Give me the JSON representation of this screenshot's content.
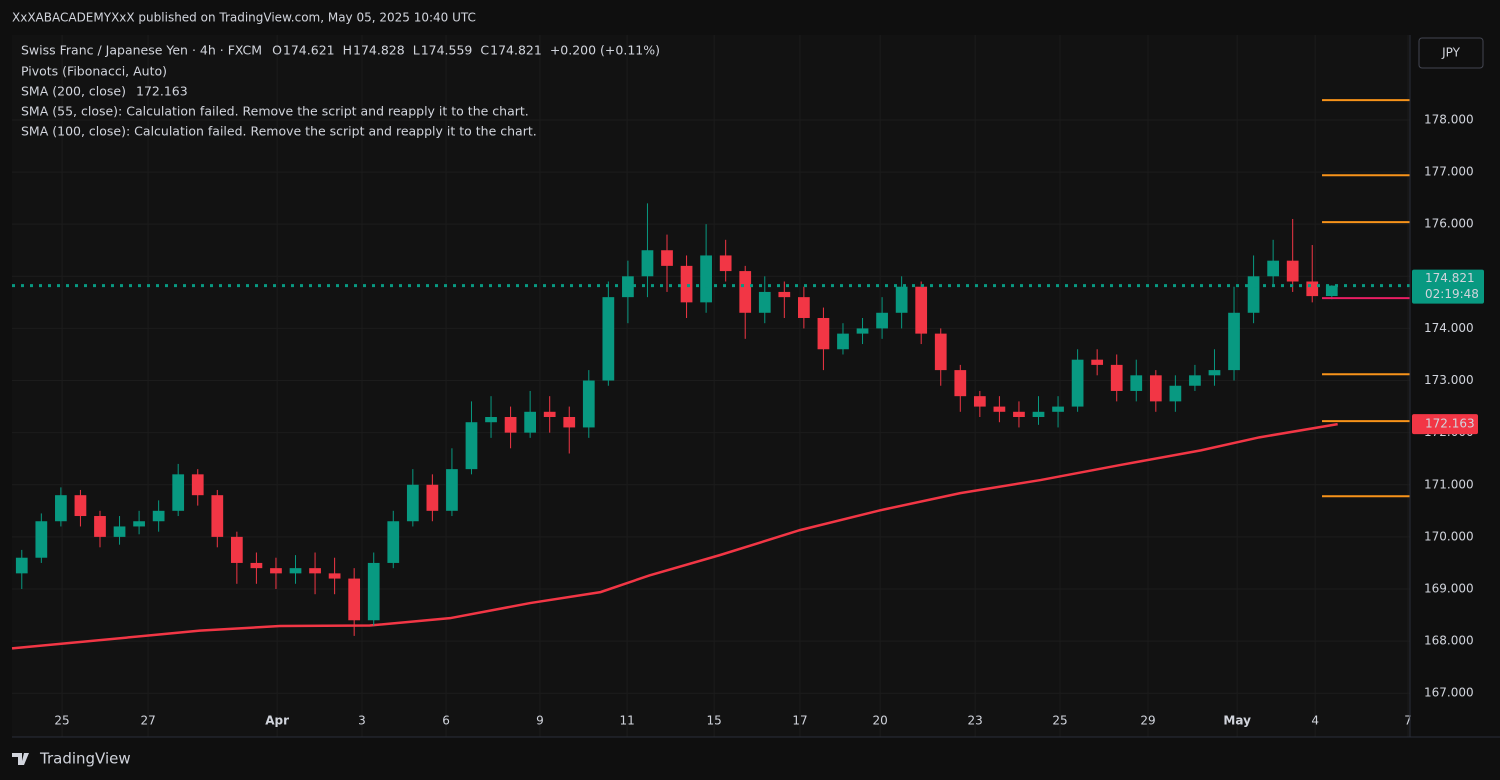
{
  "header": {
    "published": "XxXABACADEMYXxX published on TradingView.com, May 05, 2025 10:40 UTC",
    "brand": "TradingView"
  },
  "chart_data": {
    "type": "candlestick",
    "title": "Swiss Franc / Japanese Yen · 4h · FXCM",
    "ohlc_labels": [
      "O",
      "H",
      "L",
      "C"
    ],
    "change": "+0.200 (+0.11%)",
    "currency": "JPY",
    "countdown": "02:19:48",
    "up_color": "#089981",
    "down_color": "#f23645",
    "x": [
      0,
      1,
      2,
      3,
      4,
      5,
      6,
      7,
      8,
      9,
      10,
      11,
      12,
      13,
      14,
      15,
      16,
      17,
      18,
      19,
      20,
      21,
      22,
      23,
      24,
      25,
      26,
      27,
      28,
      29,
      30,
      31,
      32,
      33,
      34,
      35,
      36,
      37,
      38,
      39,
      40,
      41,
      42,
      43,
      44,
      45,
      46,
      47,
      48,
      49,
      50,
      51,
      52,
      53,
      54,
      55,
      56,
      57,
      58,
      59,
      60,
      61,
      62,
      63,
      64,
      65,
      66,
      67
    ],
    "open": [
      169.3,
      169.6,
      170.3,
      170.8,
      170.4,
      170.0,
      170.2,
      170.3,
      170.5,
      171.2,
      170.8,
      170.0,
      169.5,
      169.4,
      169.3,
      169.4,
      169.3,
      169.2,
      168.4,
      169.5,
      170.3,
      171.0,
      170.5,
      171.3,
      172.2,
      172.3,
      172.0,
      172.4,
      172.3,
      172.1,
      173.0,
      174.6,
      175.0,
      175.5,
      175.2,
      174.5,
      175.4,
      175.1,
      174.3,
      174.7,
      174.6,
      174.2,
      173.6,
      173.9,
      174.0,
      174.3,
      174.8,
      173.9,
      173.2,
      172.7,
      172.5,
      172.4,
      172.3,
      172.4,
      172.5,
      173.4,
      173.3,
      172.8,
      173.1,
      172.6,
      172.9,
      173.1,
      173.2,
      174.3,
      175.0,
      175.3,
      174.9,
      174.621
    ],
    "high": [
      169.75,
      170.45,
      170.95,
      170.9,
      170.5,
      170.4,
      170.5,
      170.7,
      171.4,
      171.3,
      170.9,
      170.1,
      169.7,
      169.6,
      169.65,
      169.7,
      169.6,
      169.4,
      169.7,
      170.5,
      171.3,
      171.2,
      171.7,
      172.6,
      172.7,
      172.5,
      172.8,
      172.7,
      172.5,
      173.2,
      174.9,
      175.3,
      176.4,
      175.8,
      175.4,
      176.0,
      175.7,
      175.2,
      175.0,
      174.9,
      174.8,
      174.4,
      174.1,
      174.2,
      174.6,
      175.0,
      174.9,
      174.0,
      173.3,
      172.8,
      172.7,
      172.6,
      172.7,
      172.7,
      173.6,
      173.6,
      173.5,
      173.4,
      173.2,
      173.1,
      173.3,
      173.6,
      174.8,
      175.4,
      175.7,
      176.1,
      175.6,
      174.828
    ],
    "low": [
      169.0,
      169.5,
      170.2,
      170.2,
      169.8,
      169.85,
      170.05,
      170.1,
      170.4,
      170.6,
      169.8,
      169.1,
      169.1,
      169.0,
      169.1,
      168.9,
      168.9,
      168.1,
      168.3,
      169.4,
      170.2,
      170.3,
      170.4,
      171.2,
      171.9,
      171.7,
      171.9,
      172.0,
      171.6,
      171.9,
      172.9,
      174.1,
      174.6,
      174.7,
      174.2,
      174.3,
      174.9,
      173.8,
      174.1,
      174.2,
      174.0,
      173.2,
      173.5,
      173.7,
      173.8,
      174.0,
      173.7,
      172.9,
      172.4,
      172.3,
      172.2,
      172.1,
      172.15,
      172.1,
      172.4,
      173.1,
      172.6,
      172.6,
      172.4,
      172.4,
      172.8,
      172.9,
      173.0,
      174.1,
      174.8,
      174.7,
      174.5,
      174.559
    ],
    "close": [
      169.6,
      170.3,
      170.8,
      170.4,
      170.0,
      170.2,
      170.3,
      170.5,
      171.2,
      170.8,
      170.0,
      169.5,
      169.4,
      169.3,
      169.4,
      169.3,
      169.2,
      168.4,
      169.5,
      170.3,
      171.0,
      170.5,
      171.3,
      172.2,
      172.3,
      172.0,
      172.4,
      172.3,
      172.1,
      173.0,
      174.6,
      175.0,
      175.5,
      175.2,
      174.5,
      175.4,
      175.1,
      174.3,
      174.7,
      174.6,
      174.2,
      173.6,
      173.9,
      174.0,
      174.3,
      174.8,
      173.9,
      173.2,
      172.7,
      172.5,
      172.4,
      172.3,
      172.4,
      172.5,
      173.4,
      173.3,
      172.8,
      173.1,
      172.6,
      172.9,
      173.1,
      173.2,
      174.3,
      175.0,
      175.3,
      174.9,
      174.62,
      174.821
    ],
    "pivots": {
      "label": "Pivots (Fibonacci, Auto)",
      "color": "#f7931a",
      "levels": [
        178.38,
        176.94,
        176.04,
        173.12,
        172.22,
        170.78
      ],
      "central": 174.58,
      "central_color": "#e91e63"
    },
    "sma": {
      "label": "SMA (200, close)",
      "value": 172.163,
      "color": "#f23645",
      "x": [
        -0.5,
        9.1,
        13.2,
        17.8,
        21.9,
        26.0,
        29.6,
        32.1,
        35.7,
        39.8,
        43.9,
        48.0,
        52.1,
        56.2,
        60.3,
        63.3,
        67.3
      ],
      "values": [
        167.86,
        168.2,
        168.29,
        168.3,
        168.44,
        168.73,
        168.94,
        169.26,
        169.65,
        170.13,
        170.51,
        170.84,
        171.09,
        171.38,
        171.66,
        171.91,
        172.163
      ]
    },
    "notes": [
      "SMA (55, close): Calculation failed. Remove the script and reapply it to the chart.",
      "SMA (100, close): Calculation failed. Remove the script and reapply it to the chart."
    ],
    "xlim": [
      -0.5,
      71
    ],
    "ylim": [
      166.16,
      179.63
    ],
    "grid": true,
    "xticks": [
      {
        "value": 2.06,
        "label": "25"
      },
      {
        "value": 6.46,
        "label": "27"
      },
      {
        "value": 13.06,
        "label": "Apr"
      },
      {
        "value": 17.4,
        "label": "3"
      },
      {
        "value": 21.7,
        "label": "6"
      },
      {
        "value": 26.5,
        "label": "9"
      },
      {
        "value": 30.96,
        "label": "11"
      },
      {
        "value": 35.41,
        "label": "15"
      },
      {
        "value": 39.8,
        "label": "17"
      },
      {
        "value": 43.9,
        "label": "20"
      },
      {
        "value": 48.76,
        "label": "23"
      },
      {
        "value": 53.1,
        "label": "25"
      },
      {
        "value": 57.6,
        "label": "29"
      },
      {
        "value": 62.16,
        "label": "May"
      },
      {
        "value": 66.15,
        "label": "4"
      },
      {
        "value": 70.9,
        "label": "7"
      }
    ],
    "yticks": [
      {
        "value": 167,
        "label": "167.000"
      },
      {
        "value": 168,
        "label": "168.000"
      },
      {
        "value": 169,
        "label": "169.000"
      },
      {
        "value": 170,
        "label": "170.000"
      },
      {
        "value": 171,
        "label": "171.000"
      },
      {
        "value": 172,
        "label": "172.000"
      },
      {
        "value": 173,
        "label": "173.000"
      },
      {
        "value": 174,
        "label": "174.000"
      },
      {
        "value": 175,
        "label": "175.000"
      },
      {
        "value": 176,
        "label": "176.000"
      },
      {
        "value": 177,
        "label": "177.000"
      },
      {
        "value": 178,
        "label": "178.000"
      }
    ]
  }
}
